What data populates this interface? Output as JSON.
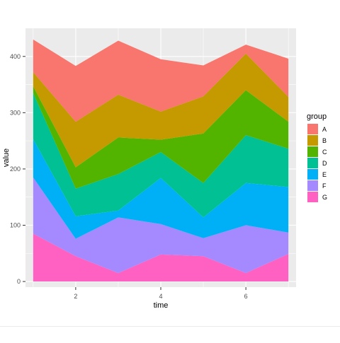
{
  "chart_data": {
    "type": "area",
    "stacked": true,
    "xlabel": "time",
    "ylabel": "value",
    "x": [
      1,
      2,
      3,
      4,
      5,
      6,
      7
    ],
    "xlim": [
      0.82,
      7.18
    ],
    "ylim": [
      -10,
      450
    ],
    "x_ticks": [
      2,
      4,
      6
    ],
    "y_ticks": [
      0,
      100,
      200,
      300,
      400
    ],
    "grid": true,
    "legend": {
      "title": "group",
      "position": "right"
    },
    "series": [
      {
        "name": "G",
        "color": "#FF61C3",
        "values": [
          85,
          45,
          15,
          48,
          45,
          15,
          49
        ]
      },
      {
        "name": "F",
        "color": "#A58AFF",
        "values": [
          100,
          31,
          99,
          54,
          32,
          85,
          38
        ]
      },
      {
        "name": "E",
        "color": "#00B0F6",
        "values": [
          68,
          40,
          12,
          82,
          37,
          75,
          81
        ]
      },
      {
        "name": "D",
        "color": "#00C094",
        "values": [
          82,
          49,
          65,
          46,
          61,
          85,
          68
        ]
      },
      {
        "name": "C",
        "color": "#53B400",
        "values": [
          12,
          38,
          65,
          22,
          88,
          80,
          48
        ]
      },
      {
        "name": "B",
        "color": "#C49A00",
        "values": [
          25,
          81,
          76,
          50,
          66,
          65,
          44
        ]
      },
      {
        "name": "A",
        "color": "#F8766D",
        "values": [
          58,
          99,
          96,
          93,
          55,
          16,
          68
        ]
      }
    ]
  }
}
